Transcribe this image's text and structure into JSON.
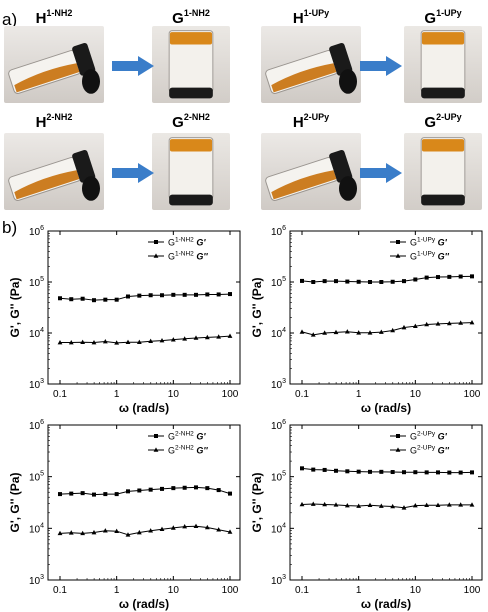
{
  "panel_a_label": "a)",
  "panel_b_label": "b)",
  "photos": [
    {
      "title_base": "H",
      "title_sup": "1-NH2",
      "kind": "tilted"
    },
    {
      "title_base": "G",
      "title_sup": "1-NH2",
      "kind": "upright"
    },
    {
      "title_base": "H",
      "title_sup": "1-UPy",
      "kind": "tilted"
    },
    {
      "title_base": "G",
      "title_sup": "1-UPy",
      "kind": "upright"
    },
    {
      "title_base": "H",
      "title_sup": "2-NH2",
      "kind": "tilted"
    },
    {
      "title_base": "G",
      "title_sup": "2-NH2",
      "kind": "upright"
    },
    {
      "title_base": "H",
      "title_sup": "2-UPy",
      "kind": "tilted"
    },
    {
      "title_base": "G",
      "title_sup": "2-UPy",
      "kind": "upright"
    }
  ],
  "colors": {
    "arrow": "#3a7dc9",
    "liquid": "#c8700a",
    "gel": "#d9881a",
    "line": "#000000"
  },
  "icons": {
    "arrow": "right-arrow-icon"
  },
  "chart_data": [
    {
      "type": "line",
      "xscale": "log",
      "yscale": "log",
      "xlabel": "ω (rad/s)",
      "ylabel": "G', G'' (Pa)",
      "xlim": [
        0.1,
        100
      ],
      "ylim": [
        1000,
        1000000
      ],
      "xticks": [
        "0.1",
        "1",
        "10",
        "100"
      ],
      "yticks": [
        "10^3",
        "10^4",
        "10^5",
        "10^6"
      ],
      "legend_placement": "top-right",
      "x": [
        0.1,
        0.158,
        0.251,
        0.398,
        0.631,
        1,
        1.585,
        2.512,
        3.981,
        6.31,
        10,
        15.85,
        25.12,
        39.81,
        63.1,
        100
      ],
      "series": [
        {
          "name_base": "G",
          "name_sup": "1-NH2",
          "name_mod": "G'",
          "marker": "square",
          "values": [
            48000,
            46000,
            47000,
            44000,
            45000,
            45000,
            52000,
            54000,
            55000,
            55000,
            56000,
            56000,
            56000,
            57000,
            57000,
            58000
          ]
        },
        {
          "name_base": "G",
          "name_sup": "1-NH2",
          "name_mod": "G''",
          "marker": "triangle",
          "values": [
            6500,
            6500,
            6600,
            6500,
            6800,
            6400,
            6600,
            6600,
            6900,
            7100,
            7400,
            7700,
            8000,
            8200,
            8400,
            8700
          ]
        }
      ]
    },
    {
      "type": "line",
      "xscale": "log",
      "yscale": "log",
      "xlabel": "ω (rad/s)",
      "ylabel": "G', G'' (Pa)",
      "xlim": [
        0.1,
        100
      ],
      "ylim": [
        1000,
        1000000
      ],
      "xticks": [
        "0.1",
        "1",
        "10",
        "100"
      ],
      "yticks": [
        "10^3",
        "10^4",
        "10^5",
        "10^6"
      ],
      "legend_placement": "top-right",
      "x": [
        0.1,
        0.158,
        0.251,
        0.398,
        0.631,
        1,
        1.585,
        2.512,
        3.981,
        6.31,
        10,
        15.85,
        25.12,
        39.81,
        63.1,
        100
      ],
      "series": [
        {
          "name_base": "G",
          "name_sup": "1-UPy",
          "name_mod": "G'",
          "marker": "square",
          "values": [
            105000,
            100000,
            104000,
            104000,
            102000,
            101000,
            100000,
            100000,
            101000,
            104000,
            112000,
            122000,
            125000,
            126000,
            128000,
            129000
          ]
        },
        {
          "name_base": "G",
          "name_sup": "1-UPy",
          "name_mod": "G''",
          "marker": "triangle",
          "values": [
            10500,
            9200,
            10000,
            10300,
            10600,
            10100,
            10100,
            10400,
            11200,
            12800,
            13600,
            14700,
            15100,
            15400,
            15700,
            16000
          ]
        }
      ]
    },
    {
      "type": "line",
      "xscale": "log",
      "yscale": "log",
      "xlabel": "ω (rad/s)",
      "ylabel": "G', G'' (Pa)",
      "xlim": [
        0.1,
        100
      ],
      "ylim": [
        1000,
        1000000
      ],
      "xticks": [
        "0.1",
        "1",
        "10",
        "100"
      ],
      "yticks": [
        "10^3",
        "10^4",
        "10^5",
        "10^6"
      ],
      "legend_placement": "top-right",
      "x": [
        0.1,
        0.158,
        0.251,
        0.398,
        0.631,
        1,
        1.585,
        2.512,
        3.981,
        6.31,
        10,
        15.85,
        25.12,
        39.81,
        63.1,
        100
      ],
      "series": [
        {
          "name_base": "G",
          "name_sup": "2-NH2",
          "name_mod": "G'",
          "marker": "square",
          "values": [
            46000,
            47000,
            48000,
            45000,
            46000,
            46000,
            52000,
            54000,
            56000,
            58000,
            60000,
            61000,
            62000,
            60000,
            55000,
            47000
          ]
        },
        {
          "name_base": "G",
          "name_sup": "2-NH2",
          "name_mod": "G''",
          "marker": "triangle",
          "values": [
            8000,
            8200,
            8000,
            8300,
            9000,
            8800,
            7500,
            8300,
            9000,
            9600,
            10200,
            10800,
            11000,
            10400,
            9400,
            8500
          ]
        }
      ]
    },
    {
      "type": "line",
      "xscale": "log",
      "yscale": "log",
      "xlabel": "ω (rad/s)",
      "ylabel": "G', G'' (Pa)",
      "xlim": [
        0.1,
        100
      ],
      "ylim": [
        1000,
        1000000
      ],
      "xticks": [
        "0.1",
        "1",
        "10",
        "100"
      ],
      "yticks": [
        "10^3",
        "10^4",
        "10^5",
        "10^6"
      ],
      "legend_placement": "top-right",
      "x": [
        0.1,
        0.158,
        0.251,
        0.398,
        0.631,
        1,
        1.585,
        2.512,
        3.981,
        6.31,
        10,
        15.85,
        25.12,
        39.81,
        63.1,
        100
      ],
      "series": [
        {
          "name_base": "G",
          "name_sup": "2-UPy",
          "name_mod": "G'",
          "marker": "square",
          "values": [
            145000,
            137000,
            135000,
            130000,
            127000,
            125000,
            124000,
            124000,
            123000,
            122000,
            122000,
            121000,
            121000,
            120000,
            120000,
            121000
          ]
        },
        {
          "name_base": "G",
          "name_sup": "2-UPy",
          "name_mod": "G''",
          "marker": "triangle",
          "values": [
            29000,
            29500,
            29000,
            28500,
            27500,
            27000,
            28000,
            27000,
            26500,
            25000,
            27500,
            28000,
            28000,
            28500,
            28500,
            28500
          ]
        }
      ]
    }
  ]
}
